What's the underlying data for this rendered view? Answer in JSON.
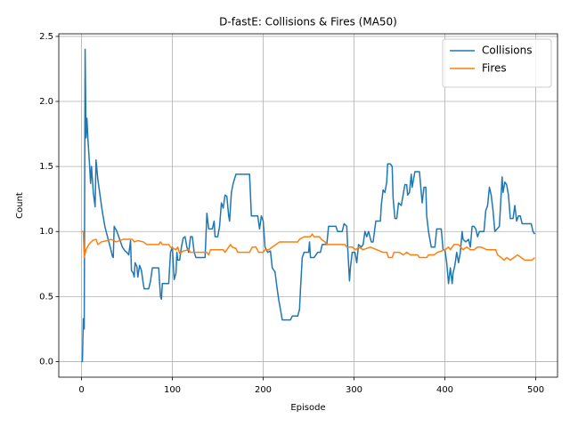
{
  "chart_data": {
    "type": "line",
    "title": "D-fastE: Collisions & Fires (MA50)",
    "xlabel": "Episode",
    "ylabel": "Count",
    "xlim": [
      -25,
      524
    ],
    "ylim": [
      -0.12,
      2.52
    ],
    "xticks": [
      0,
      100,
      200,
      300,
      400,
      500
    ],
    "yticks": [
      {
        "value": 0,
        "label": "0.0"
      },
      0.5,
      {
        "value": 1,
        "label": "1.0"
      },
      1.5,
      {
        "value": 2,
        "label": "2.0"
      },
      2.5
    ],
    "grid": true,
    "legend": "upper right",
    "series": [
      {
        "name": "Collisions",
        "color": "#1f77b4",
        "x": [
          0,
          1,
          2,
          3,
          4,
          5,
          6,
          7,
          9,
          10,
          11,
          13,
          15,
          16,
          18,
          20,
          23,
          26,
          29,
          32,
          34,
          35,
          36,
          39,
          42,
          45,
          48,
          50,
          52,
          54,
          55,
          57,
          58,
          59,
          61,
          62,
          64,
          66,
          68,
          69,
          74,
          76,
          78,
          85,
          86,
          87,
          88,
          89,
          96,
          97,
          98,
          100,
          102,
          104,
          105,
          106,
          108,
          110,
          112,
          114,
          116,
          118,
          120,
          122,
          124,
          126,
          136,
          137,
          138,
          140,
          144,
          146,
          147,
          150,
          152,
          154,
          156,
          158,
          160,
          162,
          163,
          165,
          167,
          170,
          185,
          187,
          194,
          196,
          198,
          200,
          202,
          205,
          208,
          210,
          213,
          215,
          217,
          219,
          221,
          230,
          232,
          238,
          240,
          241,
          243,
          245,
          250,
          251,
          252,
          256,
          260,
          263,
          265,
          270,
          272,
          280,
          282,
          287,
          289,
          292,
          293,
          295,
          296,
          298,
          301,
          303,
          305,
          308,
          310,
          312,
          314,
          316,
          319,
          321,
          324,
          329,
          330,
          332,
          334,
          336,
          337,
          340,
          342,
          343,
          345,
          347,
          349,
          352,
          354,
          356,
          358,
          359,
          361,
          363,
          364,
          367,
          372,
          373,
          375,
          377,
          379,
          380,
          382,
          385,
          389,
          391,
          396,
          398,
          400,
          402,
          404,
          406,
          408,
          409,
          411,
          413,
          415,
          417,
          419,
          420,
          423,
          426,
          428,
          430,
          432,
          434,
          436,
          438,
          443,
          445,
          447,
          449,
          451,
          453,
          455,
          460,
          463,
          464,
          466,
          468,
          470,
          472,
          475,
          477,
          479,
          481,
          483,
          485,
          495,
          497,
          499
        ],
        "values": [
          0,
          0,
          0.33,
          0.25,
          2.4,
          1.72,
          1.87,
          1.72,
          1.5,
          1.37,
          1.5,
          1.3,
          1.19,
          1.55,
          1.4,
          1.3,
          1.15,
          1.03,
          0.95,
          0.87,
          0.81,
          0.8,
          1.04,
          1.0,
          0.94,
          0.88,
          0.85,
          0.84,
          0.82,
          0.93,
          0.7,
          0.68,
          0.65,
          0.76,
          0.73,
          0.65,
          0.74,
          0.7,
          0.6,
          0.56,
          0.56,
          0.62,
          0.72,
          0.72,
          0.6,
          0.5,
          0.48,
          0.6,
          0.6,
          0.72,
          0.84,
          0.88,
          0.63,
          0.68,
          0.84,
          0.78,
          0.78,
          0.88,
          0.95,
          0.96,
          0.88,
          0.84,
          0.96,
          0.96,
          0.84,
          0.8,
          0.8,
          0.96,
          1.14,
          1.02,
          1.02,
          1.08,
          0.96,
          0.96,
          1.04,
          1.22,
          1.18,
          1.28,
          1.27,
          1.12,
          1.08,
          1.3,
          1.37,
          1.44,
          1.44,
          1.12,
          1.12,
          1.02,
          1.12,
          1.08,
          0.88,
          0.84,
          0.85,
          0.72,
          0.69,
          0.58,
          0.48,
          0.4,
          0.32,
          0.32,
          0.35,
          0.35,
          0.4,
          0.55,
          0.8,
          0.84,
          0.84,
          0.92,
          0.8,
          0.8,
          0.84,
          0.84,
          0.9,
          0.9,
          1.04,
          1.04,
          1.0,
          1.0,
          1.06,
          1.04,
          0.88,
          0.62,
          0.72,
          0.84,
          0.84,
          0.76,
          0.9,
          0.88,
          0.9,
          1.0,
          0.96,
          1.0,
          0.92,
          0.92,
          1.08,
          1.08,
          1.2,
          1.32,
          1.3,
          1.38,
          1.52,
          1.52,
          1.5,
          1.26,
          1.1,
          1.1,
          1.22,
          1.2,
          1.28,
          1.36,
          1.36,
          1.28,
          1.3,
          1.44,
          1.34,
          1.46,
          1.46,
          1.38,
          1.22,
          1.34,
          1.34,
          1.12,
          1.0,
          0.88,
          0.88,
          1.02,
          1.02,
          0.86,
          0.86,
          0.76,
          0.6,
          0.72,
          0.6,
          0.68,
          0.74,
          0.84,
          0.76,
          0.84,
          1.0,
          0.94,
          0.92,
          0.94,
          0.88,
          1.04,
          1.04,
          1.02,
          0.96,
          1.0,
          1.0,
          1.16,
          1.2,
          1.34,
          1.28,
          1.16,
          1.0,
          1.04,
          1.42,
          1.3,
          1.38,
          1.36,
          1.28,
          1.1,
          1.1,
          1.2,
          1.08,
          1.12,
          1.12,
          1.06,
          1.06,
          1.0,
          0.98
        ]
      },
      {
        "name": "Fires",
        "color": "#ff7f0e",
        "x": [
          0,
          2,
          3,
          5,
          8,
          12,
          16,
          18,
          22,
          28,
          32,
          36,
          38,
          42,
          46,
          56,
          58,
          62,
          68,
          72,
          85,
          87,
          89,
          96,
          98,
          104,
          106,
          108,
          112,
          118,
          120,
          138,
          140,
          142,
          150,
          156,
          158,
          162,
          164,
          166,
          170,
          172,
          185,
          188,
          192,
          195,
          200,
          202,
          206,
          210,
          214,
          218,
          238,
          240,
          245,
          252,
          254,
          256,
          262,
          264,
          268,
          270,
          290,
          292,
          298,
          302,
          305,
          310,
          318,
          325,
          332,
          336,
          338,
          342,
          344,
          350,
          354,
          358,
          362,
          370,
          372,
          380,
          382,
          388,
          392,
          400,
          404,
          406,
          410,
          415,
          420,
          424,
          428,
          432,
          436,
          440,
          446,
          456,
          458,
          462,
          465,
          468,
          472,
          476,
          480,
          484,
          488,
          496,
          499
        ],
        "values": [
          1.0,
          1.0,
          0.8,
          0.86,
          0.9,
          0.93,
          0.94,
          0.9,
          0.92,
          0.93,
          0.94,
          0.93,
          0.92,
          0.93,
          0.94,
          0.94,
          0.92,
          0.93,
          0.92,
          0.9,
          0.9,
          0.92,
          0.9,
          0.9,
          0.88,
          0.86,
          0.88,
          0.83,
          0.85,
          0.86,
          0.84,
          0.84,
          0.82,
          0.86,
          0.86,
          0.86,
          0.84,
          0.88,
          0.9,
          0.88,
          0.87,
          0.84,
          0.84,
          0.88,
          0.88,
          0.84,
          0.84,
          0.86,
          0.86,
          0.88,
          0.9,
          0.92,
          0.92,
          0.94,
          0.96,
          0.96,
          0.98,
          0.96,
          0.96,
          0.94,
          0.92,
          0.9,
          0.9,
          0.88,
          0.88,
          0.86,
          0.88,
          0.86,
          0.88,
          0.86,
          0.84,
          0.84,
          0.8,
          0.8,
          0.84,
          0.84,
          0.82,
          0.84,
          0.82,
          0.82,
          0.8,
          0.8,
          0.82,
          0.82,
          0.84,
          0.86,
          0.88,
          0.86,
          0.9,
          0.9,
          0.86,
          0.88,
          0.86,
          0.86,
          0.88,
          0.88,
          0.86,
          0.86,
          0.82,
          0.8,
          0.78,
          0.8,
          0.78,
          0.8,
          0.82,
          0.8,
          0.78,
          0.78,
          0.8
        ]
      }
    ]
  }
}
